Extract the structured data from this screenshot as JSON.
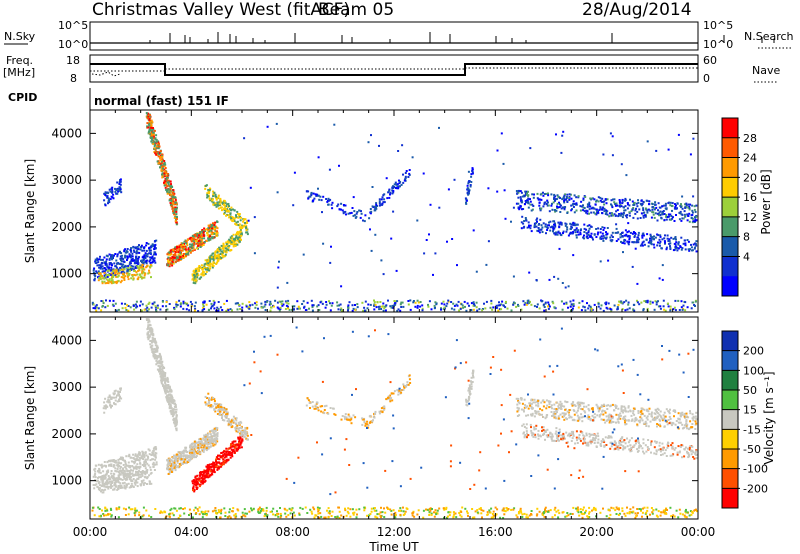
{
  "header": {
    "title": "Christmas Valley West (fitACF)",
    "beam": "Beam 05",
    "date": "28/Aug/2014"
  },
  "mini_panels": {
    "nsky_label": "N.Sky",
    "nsky_ticks": [
      "10^5",
      "10^0"
    ],
    "nsearch_label": "N.Search",
    "nsearch_ticks": [
      "10^5",
      "10^0"
    ],
    "freq_label": "Freq.",
    "freq_unit": "[MHz]",
    "freq_ticks": [
      "18",
      "8"
    ],
    "nave_label": "Nave",
    "nave_ticks": [
      "60",
      "0"
    ],
    "cpid_label": "CPID",
    "cpid_text": "normal (fast) 151 IF"
  },
  "chart_data": [
    {
      "type": "heatmap",
      "name": "power",
      "ylabel": "Slant Range [km]",
      "yticks": [
        "4000",
        "3000",
        "2000",
        "1000"
      ],
      "ylim": [
        180,
        4500
      ],
      "xlim": [
        0,
        24
      ],
      "colorbar": {
        "label": "Power [dB]",
        "ticks": [
          "28",
          "24",
          "20",
          "16",
          "12",
          "8",
          "4"
        ],
        "colors": [
          "#ff0000",
          "#ff5a00",
          "#ff9a00",
          "#ffcc00",
          "#9ccf3a",
          "#4a9a6a",
          "#1a5aaa",
          "#1030d0",
          "#0000ff"
        ]
      }
    },
    {
      "type": "heatmap",
      "name": "velocity",
      "ylabel": "Slant Range [km]",
      "yticks": [
        "4000",
        "3000",
        "2000",
        "1000"
      ],
      "ylim": [
        180,
        4500
      ],
      "xlim": [
        0,
        24
      ],
      "xlabel": "Time UT",
      "xticks": [
        "00:00",
        "04:00",
        "08:00",
        "12:00",
        "16:00",
        "20:00",
        "00:00"
      ],
      "colorbar": {
        "label": "Velocity [m s⁻¹]",
        "ticks": [
          "200",
          "100",
          "50",
          "15",
          "-15",
          "-50",
          "-100",
          "-200"
        ],
        "colors": [
          "#1030b0",
          "#2060c0",
          "#208040",
          "#50c040",
          "#c8c8c0",
          "#ffd000",
          "#ff9a00",
          "#ff5000",
          "#ff0000"
        ]
      }
    }
  ]
}
